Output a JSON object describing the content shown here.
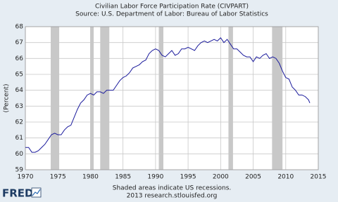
{
  "chart_data": {
    "type": "line",
    "title": "Civilian Labor Force Participation Rate (CIVPART)",
    "subtitle": "Source: U.S. Department of Labor: Bureau of Labor Statistics",
    "y_label": "(Percent)",
    "note": "Shaded areas indicate US recessions.",
    "source": "2013 research.stlouisfed.org",
    "logo": "FRED",
    "grid": true,
    "xlim": [
      1970,
      2015
    ],
    "xticks": [
      1970,
      1975,
      1980,
      1985,
      1990,
      1995,
      2000,
      2005,
      2010,
      2015
    ],
    "ylim": [
      59,
      68
    ],
    "yticks": [
      59,
      60,
      61,
      62,
      63,
      64,
      65,
      66,
      67,
      68
    ],
    "recessions": [
      [
        1973.9,
        1975.2
      ],
      [
        1980.0,
        1980.5
      ],
      [
        1981.5,
        1982.9
      ],
      [
        1990.5,
        1991.2
      ],
      [
        2001.2,
        2001.9
      ],
      [
        2007.9,
        2009.5
      ]
    ],
    "recession_color": "#c8c8c8",
    "x": [
      1970,
      1970.5,
      1971,
      1971.5,
      1972,
      1972.5,
      1973,
      1973.5,
      1974,
      1974.5,
      1975,
      1975.5,
      1976,
      1976.5,
      1977,
      1977.5,
      1978,
      1978.5,
      1979,
      1979.5,
      1980,
      1980.5,
      1981,
      1981.5,
      1982,
      1982.5,
      1983,
      1983.5,
      1984,
      1984.5,
      1985,
      1985.5,
      1986,
      1986.5,
      1987,
      1987.5,
      1988,
      1988.5,
      1989,
      1989.5,
      1990,
      1990.5,
      1991,
      1991.5,
      1992,
      1992.5,
      1993,
      1993.5,
      1994,
      1994.5,
      1995,
      1995.5,
      1996,
      1996.5,
      1997,
      1997.5,
      1998,
      1998.5,
      1999,
      1999.5,
      2000,
      2000.5,
      2001,
      2001.5,
      2002,
      2002.5,
      2003,
      2003.5,
      2004,
      2004.5,
      2005,
      2005.5,
      2006,
      2006.5,
      2007,
      2007.5,
      2008,
      2008.5,
      2009,
      2009.5,
      2010,
      2010.5,
      2011,
      2011.5,
      2012,
      2012.5,
      2013,
      2013.5,
      2013.7
    ],
    "series": [
      {
        "name": "CIVPART",
        "color": "#1a1a9c",
        "values": [
          60.4,
          60.4,
          60.1,
          60.1,
          60.2,
          60.4,
          60.6,
          60.9,
          61.2,
          61.3,
          61.2,
          61.2,
          61.5,
          61.7,
          61.8,
          62.3,
          62.8,
          63.2,
          63.4,
          63.7,
          63.8,
          63.7,
          63.9,
          63.9,
          63.8,
          64.0,
          64.0,
          64.0,
          64.3,
          64.6,
          64.8,
          64.9,
          65.1,
          65.4,
          65.5,
          65.6,
          65.8,
          65.9,
          66.3,
          66.5,
          66.6,
          66.5,
          66.2,
          66.1,
          66.3,
          66.5,
          66.2,
          66.3,
          66.6,
          66.6,
          66.7,
          66.6,
          66.5,
          66.8,
          67.0,
          67.1,
          67.0,
          67.1,
          67.2,
          67.1,
          67.3,
          67.0,
          67.2,
          66.9,
          66.6,
          66.6,
          66.4,
          66.2,
          66.1,
          66.1,
          65.8,
          66.1,
          66.0,
          66.2,
          66.3,
          66.0,
          66.1,
          66.0,
          65.7,
          65.2,
          64.8,
          64.7,
          64.2,
          64.0,
          63.7,
          63.7,
          63.6,
          63.4,
          63.2
        ]
      }
    ]
  }
}
